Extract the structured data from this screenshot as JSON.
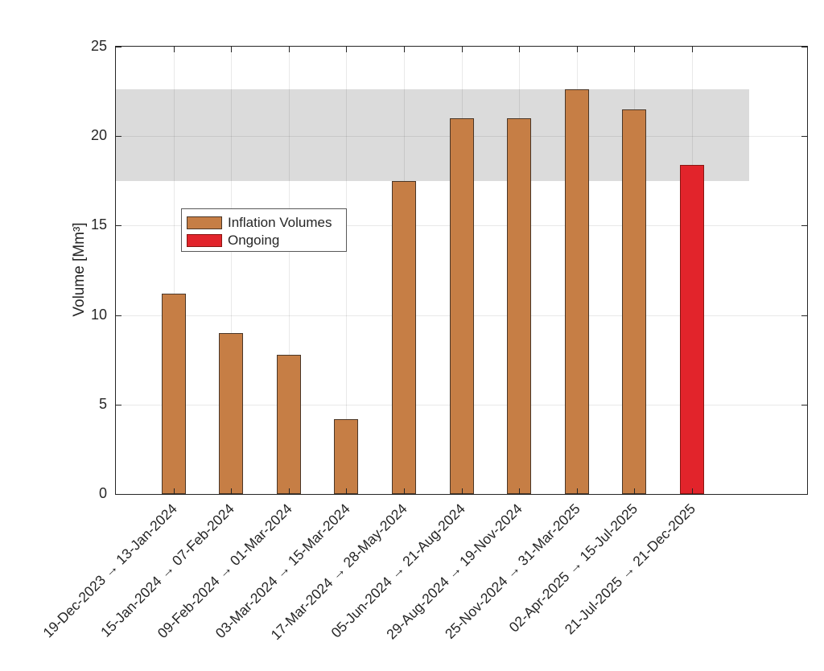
{
  "chart_data": {
    "type": "bar",
    "title": "",
    "xlabel": "",
    "ylabel": "Volume [Mm³]",
    "ylim": [
      0,
      25
    ],
    "yticks": [
      0,
      5,
      10,
      15,
      20,
      25
    ],
    "grid": true,
    "legend_position": "upper-left-inside",
    "categories": [
      "19-Dec-2023 → 13-Jan-2024",
      "15-Jan-2024 → 07-Feb-2024",
      "09-Feb-2024 → 01-Mar-2024",
      "03-Mar-2024 → 15-Mar-2024",
      "17-Mar-2024 → 28-May-2024",
      "05-Jun-2024 → 21-Aug-2024",
      "29-Aug-2024 → 19-Nov-2024",
      "25-Nov-2024 → 31-Mar-2025",
      "02-Apr-2025 → 15-Jul-2025",
      "21-Jul-2025 → 21-Dec-2025"
    ],
    "values": [
      11.2,
      9.0,
      7.8,
      4.2,
      17.5,
      21.0,
      21.0,
      22.6,
      21.5,
      18.4
    ],
    "ongoing_index": 9,
    "series": [
      {
        "name": "Inflation Volumes",
        "color": "#C67E45",
        "edge_color": "#4A3728"
      },
      {
        "name": "Ongoing",
        "color": "#E2242B",
        "edge_color": "#881713"
      }
    ],
    "band": {
      "from": 17.5,
      "to": 22.6,
      "x_end_frac": 0.9167,
      "color": "#DBDBDB"
    },
    "colors": {
      "axis": "#262626",
      "gridline": "rgba(0,0,0,0.085)",
      "background": "#FFFFFF"
    }
  }
}
